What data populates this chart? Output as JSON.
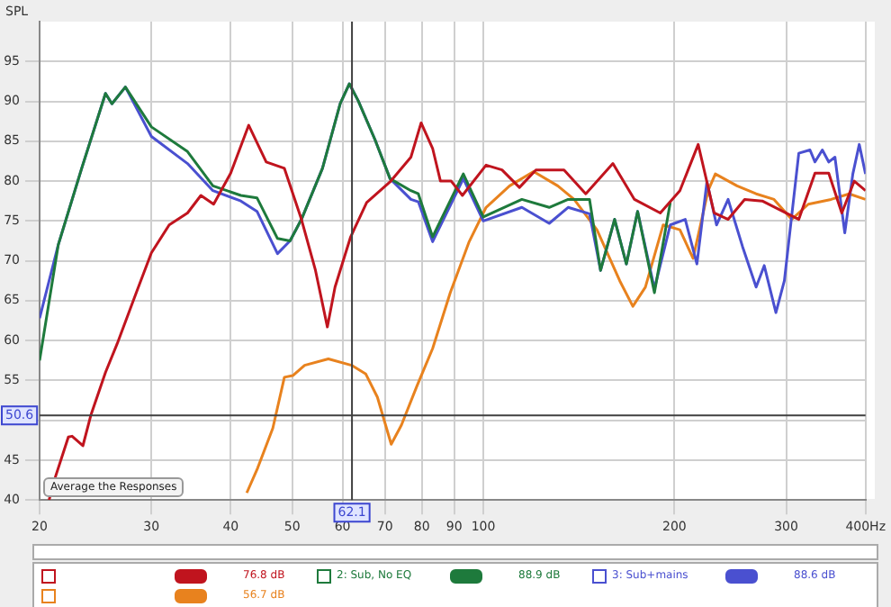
{
  "chart_data": {
    "type": "line",
    "ylabel": "SPL",
    "xlim": [
      20,
      400
    ],
    "ylim": [
      40,
      100
    ],
    "xticks": [
      20,
      30,
      40,
      50,
      60,
      70,
      80,
      90,
      100,
      200,
      300,
      {
        "value": 400,
        "label": "400Hz"
      }
    ],
    "yticks": [
      40,
      45,
      {
        "value": 50,
        "label": null
      },
      55,
      60,
      65,
      70,
      75,
      80,
      85,
      90,
      95
    ],
    "log": "x",
    "grid": true,
    "legend": "bottom",
    "marker": "none",
    "line_style": "solid",
    "ref_lines": [
      {
        "axis": "x",
        "value": 62.1,
        "label": "62.1",
        "color": "#404040"
      },
      {
        "axis": "y",
        "value": 50.6,
        "label": "50.6",
        "color": "#404040"
      }
    ],
    "annotations": [
      "Average the Responses",
      "76.8 dB",
      "88.9 dB",
      "88.6 dB",
      "56.7 dB"
    ],
    "series": [
      {
        "color": "#c0141e",
        "x": [
          20.7,
          21.2,
          22.2,
          22.5,
          23.4,
          24.1,
          25.4,
          26.5,
          28.4,
          30,
          32,
          34.2,
          35.9,
          37.6,
          40,
          42.7,
          45.5,
          48.6,
          51.7,
          54.4,
          56.8,
          58.4,
          61.8,
          65.5,
          71.3,
          76.9,
          79.8,
          83.2,
          85.6,
          89,
          92.7,
          101,
          107,
          114,
          121,
          134,
          145,
          160,
          173,
          190,
          204,
          218,
          231,
          243,
          258,
          275,
          314,
          333,
          350,
          367,
          384,
          400
        ],
        "values": [
          40,
          43,
          47.9,
          48,
          46.8,
          50.7,
          56,
          59.6,
          66,
          71,
          74.5,
          76,
          78.2,
          77.1,
          81,
          87,
          82.4,
          81.6,
          75.2,
          68.8,
          61.7,
          66.7,
          73,
          77.3,
          79.9,
          83,
          87.3,
          84.1,
          80,
          80,
          78.2,
          82,
          81.4,
          79.2,
          81.4,
          81.4,
          78.4,
          82.2,
          77.7,
          76,
          78.8,
          84.6,
          76,
          75.2,
          77.7,
          77.5,
          75.2,
          81,
          81,
          76,
          80,
          78.8
        ]
      },
      {
        "name": "2: Sub, No EQ",
        "color": "#1e7a3c",
        "x": [
          20,
          21.4,
          23.3,
          25.4,
          26,
          27.3,
          30,
          34.2,
          37.5,
          41.5,
          44,
          47.4,
          49.6,
          51.7,
          55.8,
          59.5,
          61.5,
          63.5,
          67.5,
          71.3,
          76.9,
          79,
          83.2,
          93,
          100,
          115,
          127,
          136,
          147,
          153,
          161,
          168,
          175,
          186,
          197
        ],
        "values": [
          57.5,
          72,
          81.6,
          91,
          89.7,
          91.8,
          86.8,
          83.7,
          79.4,
          78.2,
          77.9,
          72.8,
          72.5,
          75.2,
          81.6,
          89.7,
          92.2,
          90.1,
          85.2,
          80.3,
          78.8,
          78.4,
          73,
          80.9,
          75.5,
          77.7,
          76.7,
          77.7,
          77.7,
          68.8,
          75.2,
          69.6,
          76.2,
          66,
          77.3
        ]
      },
      {
        "name": "3: Sub+mains",
        "color": "#4a50d0",
        "x": [
          20,
          21.4,
          23.3,
          25.4,
          26,
          27.3,
          30,
          34.2,
          37.5,
          41.5,
          44,
          47.4,
          49.6,
          51.7,
          55.8,
          59.5,
          61.5,
          63.5,
          67.5,
          71.3,
          76.9,
          79,
          83.2,
          93,
          100,
          115,
          127,
          136,
          147,
          153,
          161,
          168,
          175,
          186,
          197,
          208,
          217,
          225,
          233,
          243,
          256,
          269,
          277,
          289,
          298,
          314,
          327,
          333,
          342,
          350,
          358,
          371,
          382,
          391,
          400
        ],
        "values": [
          62.8,
          72,
          81.6,
          91,
          89.7,
          91.8,
          85.6,
          82.2,
          78.8,
          77.5,
          76.2,
          70.9,
          72.5,
          75.2,
          81.6,
          89.7,
          92.2,
          90.1,
          85.2,
          80.3,
          77.7,
          77.4,
          72.4,
          80.3,
          75,
          76.7,
          74.7,
          76.7,
          75.9,
          68.8,
          75.2,
          69.6,
          76.2,
          66.5,
          74.5,
          75.2,
          69.6,
          79.9,
          74.5,
          77.7,
          71.8,
          66.7,
          69.4,
          63.5,
          67.5,
          83.5,
          83.9,
          82.4,
          83.9,
          82.4,
          83,
          73.5,
          80.9,
          84.6,
          80.9
        ]
      },
      {
        "color": "#e8821e",
        "x": [
          42.4,
          44.1,
          46.6,
          48.6,
          50.1,
          52.3,
          57,
          62,
          65.3,
          68.1,
          71.6,
          74.3,
          78.6,
          83.2,
          88.7,
          95,
          101,
          110,
          120,
          131,
          139,
          151,
          164,
          172,
          180,
          192,
          204,
          214,
          226,
          232,
          251,
          269,
          287,
          306,
          325,
          353,
          377,
          400
        ],
        "values": [
          40.9,
          44,
          49,
          55.4,
          55.6,
          56.9,
          57.7,
          56.9,
          55.8,
          52.9,
          47,
          49.4,
          54.3,
          59,
          66,
          72.4,
          76.7,
          79.4,
          81.2,
          79.4,
          77.7,
          73.9,
          67.5,
          64.3,
          66.7,
          74.5,
          73.9,
          70.3,
          78.8,
          80.9,
          79.4,
          78.4,
          77.7,
          75.2,
          77.1,
          77.7,
          78.4,
          77.7
        ]
      }
    ]
  }
}
